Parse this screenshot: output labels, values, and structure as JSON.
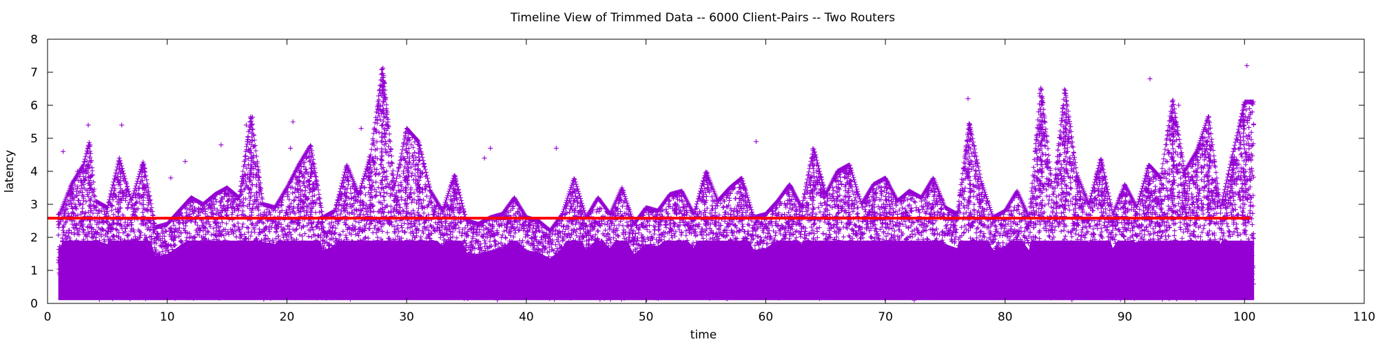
{
  "chart_data": {
    "type": "scatter",
    "title": "Timeline View of Trimmed Data -- 6000 Client-Pairs -- Two Routers",
    "xlabel": "time",
    "ylabel": "latency",
    "xlim": [
      0,
      110
    ],
    "ylim": [
      0,
      8
    ],
    "xticks": [
      "0",
      "10",
      "20",
      "30",
      "40",
      "50",
      "60",
      "70",
      "80",
      "90",
      "100",
      "110"
    ],
    "yticks": [
      "0",
      "1",
      "2",
      "3",
      "4",
      "5",
      "6",
      "7",
      "8"
    ],
    "grid": false,
    "legend": "none",
    "colors": {
      "points": "#9400d3",
      "mean_line": "#ff0000",
      "axis": "#000000"
    },
    "series": [
      {
        "marker": "plus",
        "x_range": [
          0.9,
          100.8
        ],
        "y_range": [
          0.1,
          7.2
        ],
        "upper_envelope": [
          [
            1,
            2.7
          ],
          [
            2,
            3.6
          ],
          [
            3,
            4.2
          ],
          [
            3.5,
            4.9
          ],
          [
            4,
            3.1
          ],
          [
            5,
            2.9
          ],
          [
            6,
            4.4
          ],
          [
            7,
            3.1
          ],
          [
            8,
            4.3
          ],
          [
            9,
            2.3
          ],
          [
            10,
            2.4
          ],
          [
            11,
            2.8
          ],
          [
            12,
            3.2
          ],
          [
            13,
            3.0
          ],
          [
            14,
            3.3
          ],
          [
            15,
            3.5
          ],
          [
            16,
            3.2
          ],
          [
            17,
            5.7
          ],
          [
            18,
            3.0
          ],
          [
            19,
            2.9
          ],
          [
            20,
            3.5
          ],
          [
            21,
            4.2
          ],
          [
            22,
            4.8
          ],
          [
            23,
            2.6
          ],
          [
            24,
            2.8
          ],
          [
            25,
            4.2
          ],
          [
            26,
            3.3
          ],
          [
            27,
            4.5
          ],
          [
            28,
            7.2
          ],
          [
            29,
            3.5
          ],
          [
            30,
            5.3
          ],
          [
            31,
            4.9
          ],
          [
            32,
            3.4
          ],
          [
            33,
            2.8
          ],
          [
            34,
            3.9
          ],
          [
            35,
            2.5
          ],
          [
            36,
            2.4
          ],
          [
            37,
            2.6
          ],
          [
            38,
            2.7
          ],
          [
            39,
            3.2
          ],
          [
            40,
            2.6
          ],
          [
            41,
            2.5
          ],
          [
            42,
            2.2
          ],
          [
            43,
            2.7
          ],
          [
            44,
            3.8
          ],
          [
            45,
            2.6
          ],
          [
            46,
            3.2
          ],
          [
            47,
            2.7
          ],
          [
            48,
            3.5
          ],
          [
            49,
            2.4
          ],
          [
            50,
            2.9
          ],
          [
            51,
            2.8
          ],
          [
            52,
            3.3
          ],
          [
            53,
            3.4
          ],
          [
            54,
            2.7
          ],
          [
            55,
            4.0
          ],
          [
            56,
            3.1
          ],
          [
            57,
            3.5
          ],
          [
            58,
            3.8
          ],
          [
            59,
            2.6
          ],
          [
            60,
            2.7
          ],
          [
            61,
            3.1
          ],
          [
            62,
            3.6
          ],
          [
            63,
            2.9
          ],
          [
            64,
            4.7
          ],
          [
            65,
            3.3
          ],
          [
            66,
            4.0
          ],
          [
            67,
            4.2
          ],
          [
            68,
            3.0
          ],
          [
            69,
            3.6
          ],
          [
            70,
            3.8
          ],
          [
            71,
            3.1
          ],
          [
            72,
            3.4
          ],
          [
            73,
            3.2
          ],
          [
            74,
            3.8
          ],
          [
            75,
            2.9
          ],
          [
            76,
            2.7
          ],
          [
            77,
            5.5
          ],
          [
            78,
            3.7
          ],
          [
            79,
            2.6
          ],
          [
            80,
            2.8
          ],
          [
            81,
            3.4
          ],
          [
            82,
            2.6
          ],
          [
            83,
            6.6
          ],
          [
            84,
            3.3
          ],
          [
            85,
            6.5
          ],
          [
            86,
            3.9
          ],
          [
            87,
            3.0
          ],
          [
            88,
            4.4
          ],
          [
            89,
            2.7
          ],
          [
            90,
            3.6
          ],
          [
            91,
            2.9
          ],
          [
            92,
            4.2
          ],
          [
            93,
            3.8
          ],
          [
            94,
            6.2
          ],
          [
            95,
            4.0
          ],
          [
            96,
            4.6
          ],
          [
            97,
            5.7
          ],
          [
            98,
            2.9
          ],
          [
            99,
            4.5
          ],
          [
            100,
            6.1
          ]
        ],
        "outliers": [
          [
            1.3,
            4.6
          ],
          [
            2.5,
            4.0
          ],
          [
            3.4,
            5.4
          ],
          [
            6.2,
            5.4
          ],
          [
            10.3,
            3.8
          ],
          [
            11.5,
            4.3
          ],
          [
            14.5,
            4.8
          ],
          [
            16.6,
            5.4
          ],
          [
            20.5,
            5.5
          ],
          [
            20.3,
            4.7
          ],
          [
            26.2,
            5.3
          ],
          [
            36.5,
            4.4
          ],
          [
            37.0,
            4.7
          ],
          [
            42.5,
            4.7
          ],
          [
            59.2,
            4.9
          ],
          [
            76.9,
            6.2
          ],
          [
            92.1,
            6.8
          ],
          [
            94.5,
            6.0
          ],
          [
            100.2,
            7.2
          ]
        ]
      }
    ],
    "reference_line": {
      "y": 2.58,
      "x_range": [
        0,
        100.5
      ]
    }
  }
}
